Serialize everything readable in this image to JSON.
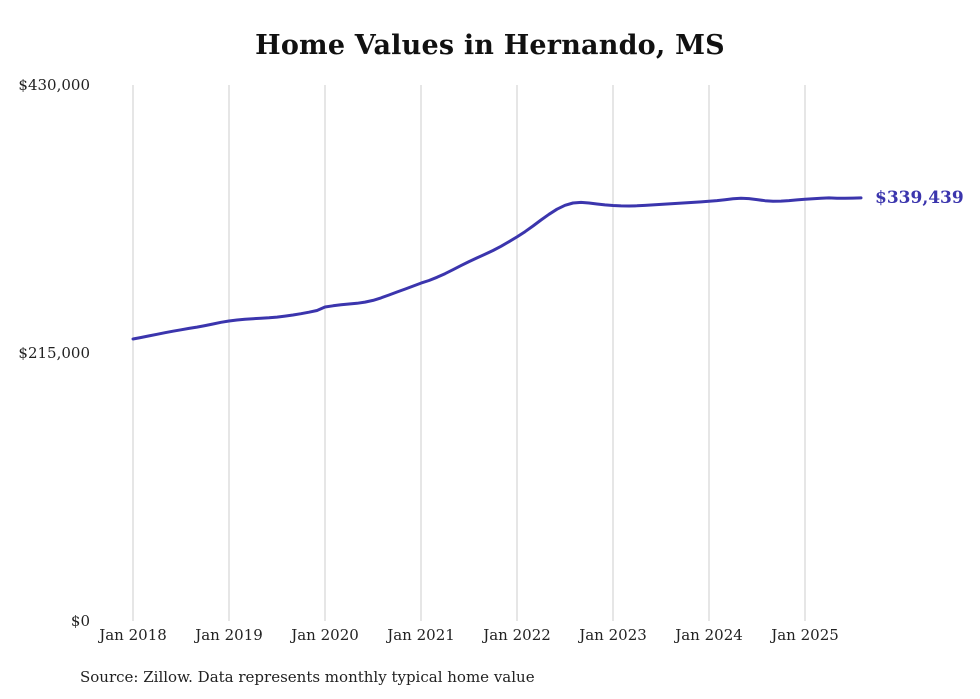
{
  "title": "Home Values in Hernando, MS",
  "end_label": "$339,439",
  "source_note": "Source: Zillow. Data represents monthly typical home value",
  "colors": {
    "line": "#3b35ad",
    "end_label": "#3b35ad",
    "grid": "#cccccc",
    "tick_text": "#222222"
  },
  "chart_data": {
    "type": "line",
    "title": "Home Values in Hernando, MS",
    "x_start": "Jan 2018",
    "x_interval": "month",
    "x_tick_labels": [
      "Jan 2018",
      "Jan 2019",
      "Jan 2020",
      "Jan 2021",
      "Jan 2022",
      "Jan 2023",
      "Jan 2024",
      "Jan 2025"
    ],
    "x_ticks_every_n_months": 12,
    "y_ticks": [
      {
        "value": 0,
        "label": "$0"
      },
      {
        "value": 215000,
        "label": "$215,000"
      },
      {
        "value": 430000,
        "label": "$430,000"
      }
    ],
    "ylim": [
      0,
      430000
    ],
    "grid": "vertical-only",
    "legend": "none",
    "end_value": 339439,
    "series": [
      {
        "name": "Monthly typical home value",
        "values": [
          226200,
          227400,
          228700,
          230000,
          231300,
          232500,
          233600,
          234700,
          235800,
          237000,
          238300,
          239600,
          240700,
          241500,
          242100,
          242500,
          242800,
          243200,
          243800,
          244600,
          245500,
          246500,
          247700,
          249100,
          251900,
          252900,
          253700,
          254300,
          254900,
          255800,
          257200,
          259200,
          261500,
          263900,
          266300,
          268700,
          271100,
          273200,
          275700,
          278600,
          281800,
          285100,
          288300,
          291300,
          294200,
          297200,
          300600,
          304300,
          308100,
          312300,
          316900,
          321700,
          326300,
          330400,
          333500,
          335300,
          335800,
          335300,
          334500,
          333800,
          333300,
          333000,
          332900,
          333100,
          333400,
          333800,
          334200,
          334600,
          335000,
          335400,
          335800,
          336200,
          336700,
          337300,
          338000,
          338700,
          339100,
          338900,
          338100,
          337200,
          336800,
          336900,
          337300,
          337800,
          338300,
          338800,
          339200,
          339400,
          339200,
          339100,
          339250,
          339439
        ]
      }
    ]
  }
}
